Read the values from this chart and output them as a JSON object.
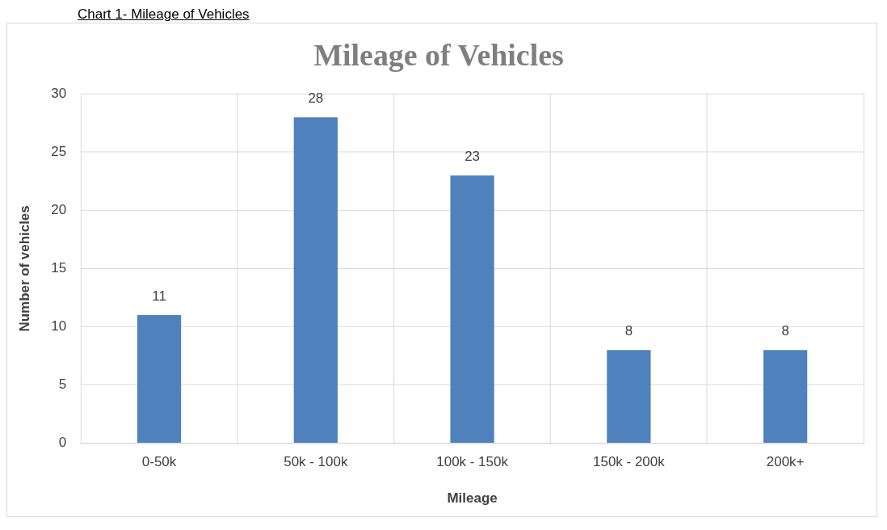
{
  "chart_data": {
    "type": "bar",
    "title": "Mileage of Vehicles",
    "xlabel": "Mileage",
    "ylabel": "Number of vehicles",
    "annotations": [
      "Chart 1- Mileage of Vehicles"
    ],
    "categories": [
      "0-50k",
      "50k - 100k",
      "100k - 150k",
      "150k - 200k",
      "200k+"
    ],
    "values": [
      11,
      28,
      23,
      8,
      8
    ],
    "color": "#4f81bd",
    "ylim": [
      0,
      30
    ],
    "yticks": [
      0,
      5,
      10,
      15,
      20,
      25,
      30
    ],
    "grid": true,
    "data_labels": true,
    "legend": false
  }
}
